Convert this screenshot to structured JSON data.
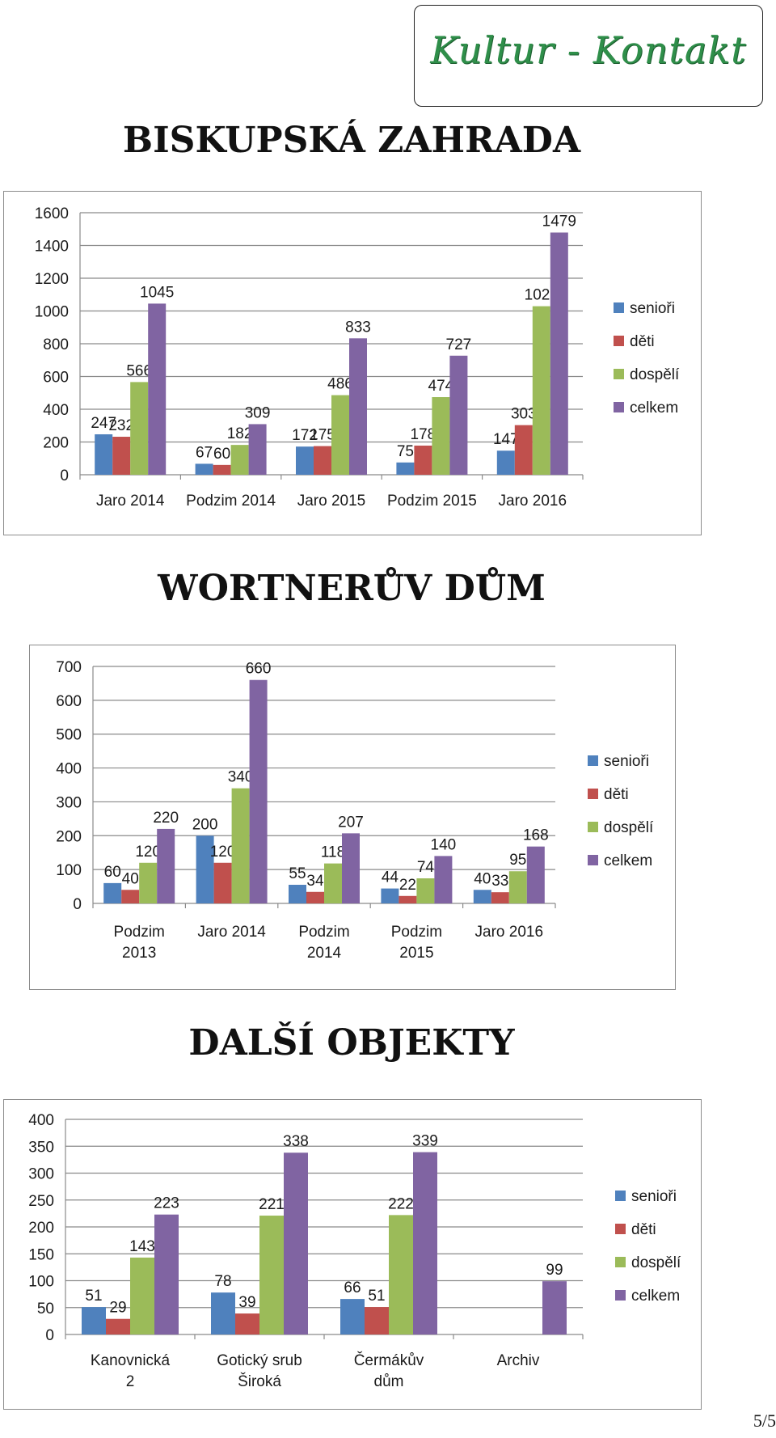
{
  "logo": {
    "text": "Kultur - Kontakt"
  },
  "sections": [
    {
      "title": "BISKUPSKÁ ZAHRADA"
    },
    {
      "title": "WORTNERŮV DŮM"
    },
    {
      "title": "DALŠÍ OBJEKTY"
    }
  ],
  "page_number": "5/5",
  "colors": {
    "senioři": "#4f81bd",
    "děti": "#c0504d",
    "dospělí": "#9bbb59",
    "celkem": "#8064a2"
  },
  "chart_data": [
    {
      "type": "bar",
      "title": "",
      "categories": [
        "Jaro 2014",
        "Podzim 2014",
        "Jaro 2015",
        "Podzim 2015",
        "Jaro 2016"
      ],
      "series": [
        {
          "name": "senioři",
          "values": [
            247,
            67,
            172,
            75,
            147
          ]
        },
        {
          "name": "děti",
          "values": [
            232,
            60,
            175,
            178,
            303
          ]
        },
        {
          "name": "dospělí",
          "values": [
            566,
            182,
            486,
            474,
            1029
          ]
        },
        {
          "name": "celkem",
          "values": [
            1045,
            309,
            833,
            727,
            1479
          ]
        }
      ],
      "ylim": [
        0,
        1600
      ],
      "yticks": [
        0,
        200,
        400,
        600,
        800,
        1000,
        1200,
        1400,
        1600
      ],
      "grid": true,
      "legend": "right"
    },
    {
      "type": "bar",
      "title": "",
      "categories": [
        "Podzim 2013",
        "Jaro 2014",
        "Podzim 2014",
        "Podzim 2015",
        "Jaro 2016"
      ],
      "series": [
        {
          "name": "senioři",
          "values": [
            60,
            200,
            55,
            44,
            40
          ]
        },
        {
          "name": "děti",
          "values": [
            40,
            120,
            34,
            22,
            33
          ]
        },
        {
          "name": "dospělí",
          "values": [
            120,
            340,
            118,
            74,
            95
          ]
        },
        {
          "name": "celkem",
          "values": [
            220,
            660,
            207,
            140,
            168
          ]
        }
      ],
      "ylim": [
        0,
        700
      ],
      "yticks": [
        0,
        100,
        200,
        300,
        400,
        500,
        600,
        700
      ],
      "grid": true,
      "legend": "right"
    },
    {
      "type": "bar",
      "title": "",
      "categories": [
        "Kanovnická 2",
        "Gotický srub Široká",
        "Čermákův dům",
        "Archiv"
      ],
      "series": [
        {
          "name": "senioři",
          "values": [
            51,
            78,
            66,
            null
          ]
        },
        {
          "name": "děti",
          "values": [
            29,
            39,
            51,
            null
          ]
        },
        {
          "name": "dospělí",
          "values": [
            143,
            221,
            222,
            null
          ]
        },
        {
          "name": "celkem",
          "values": [
            223,
            338,
            339,
            99
          ]
        }
      ],
      "ylim": [
        0,
        400
      ],
      "yticks": [
        0,
        50,
        100,
        150,
        200,
        250,
        300,
        350,
        400
      ],
      "grid": true,
      "legend": "right"
    }
  ]
}
